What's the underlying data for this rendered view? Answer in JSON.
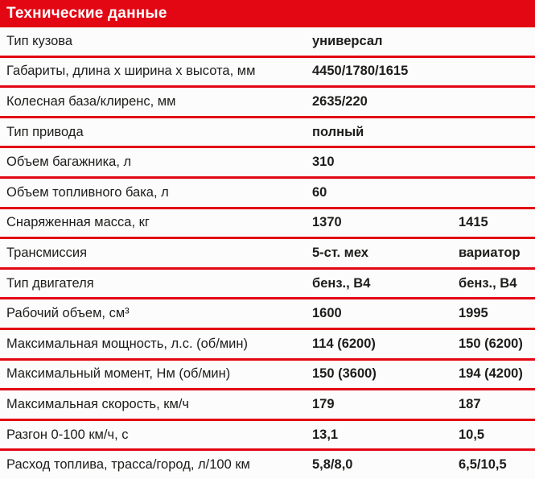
{
  "header": {
    "title": "Технические данные",
    "accent_color": "#e30613",
    "text_color": "#ffffff"
  },
  "table": {
    "rows": [
      {
        "label": "Тип кузова",
        "value1": "универсал",
        "value2": ""
      },
      {
        "label": "Габариты, длина х ширина х высота, мм",
        "value1": "4450/1780/1615",
        "value2": ""
      },
      {
        "label": "Колесная база/клиренс, мм",
        "value1": "2635/220",
        "value2": ""
      },
      {
        "label": "Тип привода",
        "value1": "полный",
        "value2": ""
      },
      {
        "label": "Объем багажника, л",
        "value1": "310",
        "value2": ""
      },
      {
        "label": "Объем топливного бака, л",
        "value1": "60",
        "value2": ""
      },
      {
        "label": "Снаряженная масса, кг",
        "value1": "1370",
        "value2": "1415"
      },
      {
        "label": "Трансмиссия",
        "value1": "5-ст. мех",
        "value2": "вариатор"
      },
      {
        "label": "Тип двигателя",
        "value1": "бенз., В4",
        "value2": "бенз., В4"
      },
      {
        "label": "Рабочий объем, см³",
        "value1": "1600",
        "value2": "1995"
      },
      {
        "label": "Максимальная мощность, л.с. (об/мин)",
        "value1": "114 (6200)",
        "value2": "150 (6200)"
      },
      {
        "label": "Максимальный момент, Нм (об/мин)",
        "value1": "150 (3600)",
        "value2": "194 (4200)"
      },
      {
        "label": "Максимальная скорость, км/ч",
        "value1": "179",
        "value2": "187"
      },
      {
        "label": "Разгон 0-100 км/ч, с",
        "value1": "13,1",
        "value2": "10,5"
      },
      {
        "label": "Расход топлива, трасса/город, л/100 км",
        "value1": "5,8/8,0",
        "value2": "6,5/10,5"
      }
    ]
  }
}
